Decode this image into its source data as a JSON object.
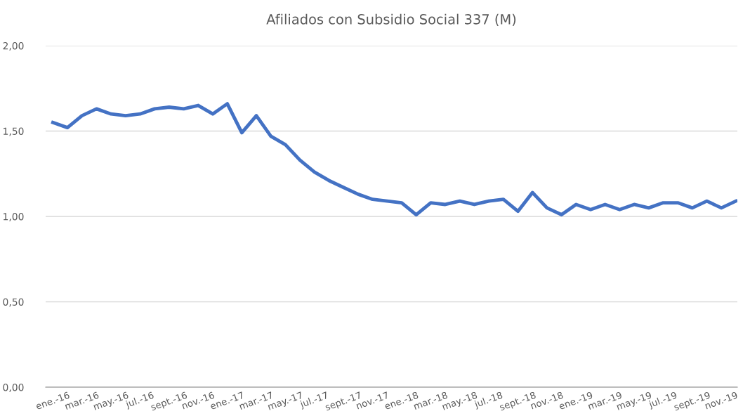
{
  "chart_data": {
    "type": "line",
    "title": "Afiliados con Subsidio Social 337 (M)",
    "categories": [
      "ene.-16",
      null,
      "mar.-16",
      null,
      "may.-16",
      null,
      "jul.-16",
      null,
      "sept.-16",
      null,
      "nov.-16",
      null,
      "ene.-17",
      null,
      "mar.-17",
      null,
      "may.-17",
      null,
      "jul.-17",
      null,
      "sept.-17",
      null,
      "nov.-17",
      null,
      "ene.-18",
      null,
      "mar.-18",
      null,
      "may.-18",
      null,
      "jul.-18",
      null,
      "sept.-18",
      null,
      "nov.-18",
      null,
      "ene.-19",
      null,
      "mar.-19",
      null,
      "may.-19",
      null,
      "jul.-19",
      null,
      "sept.-19",
      null,
      "nov.-19",
      null
    ],
    "series": [
      {
        "color": "#4472c4",
        "values": [
          1.55,
          1.52,
          1.59,
          1.63,
          1.6,
          1.59,
          1.6,
          1.63,
          1.64,
          1.63,
          1.65,
          1.6,
          1.66,
          1.49,
          1.59,
          1.47,
          1.42,
          1.33,
          1.26,
          1.21,
          1.17,
          1.13,
          1.1,
          1.09,
          1.08,
          1.01,
          1.08,
          1.07,
          1.09,
          1.07,
          1.09,
          1.1,
          1.03,
          1.14,
          1.05,
          1.01,
          1.07,
          1.04,
          1.07,
          1.04,
          1.07,
          1.05,
          1.08,
          1.08,
          1.05,
          1.09,
          1.05,
          1.09
        ]
      }
    ],
    "ylim": [
      0,
      2
    ],
    "yticks": [
      {
        "value": 0,
        "label": "0,00"
      },
      {
        "value": 0.5,
        "label": "0,50"
      },
      {
        "value": 1,
        "label": "1,00"
      },
      {
        "value": 1.5,
        "label": "1,50"
      },
      {
        "value": 2,
        "label": "2,00"
      }
    ],
    "grid": "y",
    "marker": "none",
    "line_style": "solid"
  }
}
